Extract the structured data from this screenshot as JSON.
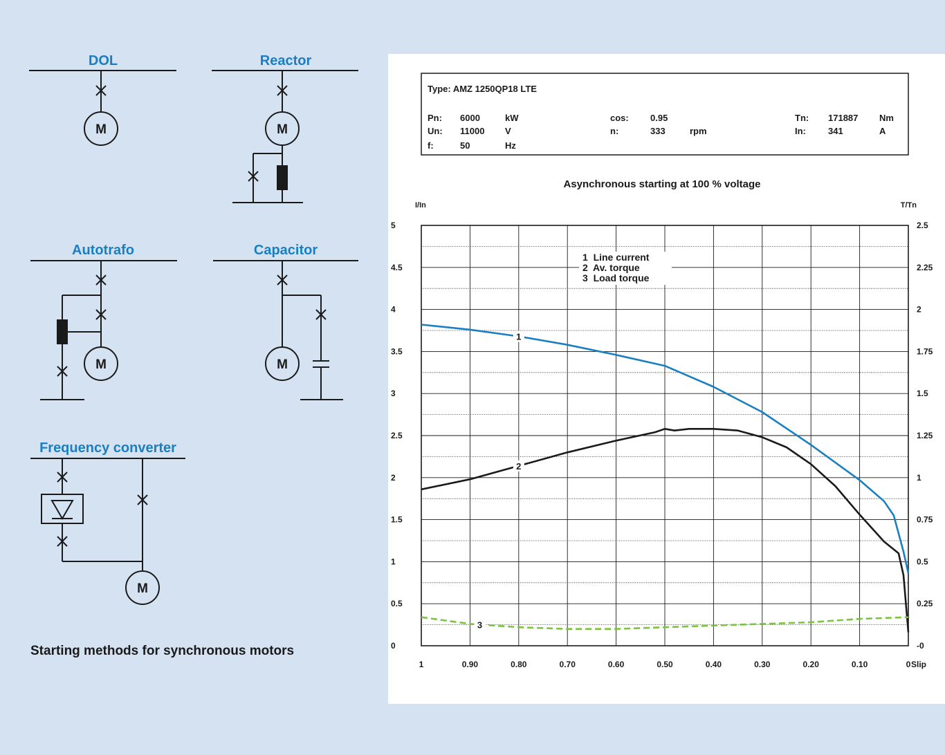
{
  "diagrams": {
    "dol": "DOL",
    "reactor": "Reactor",
    "autotrafo": "Autotrafo",
    "capacitor": "Capacitor",
    "freq": "Frequency converter",
    "motor": "M",
    "caption": "Starting methods for synchronous motors"
  },
  "motor_info": {
    "type": "Type: AMZ 1250QP18 LTE",
    "pn_label": "Pn:",
    "pn_value": "6000",
    "pn_unit": "kW",
    "un_label": "Un:",
    "un_value": "11000",
    "un_unit": "V",
    "f_label": "f:",
    "f_value": "50",
    "f_unit": "Hz",
    "cos_label": "cos:",
    "cos_value": "0.95",
    "n_label": "n:",
    "n_value": "333",
    "n_unit": "rpm",
    "tn_label": "Tn:",
    "tn_value": "171887",
    "tn_unit": "Nm",
    "in_label": "In:",
    "in_value": "341",
    "in_unit": "A"
  },
  "colors": {
    "blue_title": "#1a7fc1",
    "line_current": "#1a7fc1",
    "av_torque": "#1a1a1a",
    "load_torque": "#7cc242"
  },
  "chart_data": {
    "type": "line",
    "title": "Asynchronous starting at 100 % voltage",
    "ylabel_left": "I/In",
    "ylabel_right": "T/Tn",
    "xlabel": "Slip",
    "x_ticks": [
      "1",
      "0.90",
      "0.80",
      "0.70",
      "0.60",
      "0.50",
      "0.40",
      "0.30",
      "0.20",
      "0.10",
      "0"
    ],
    "y_left_ticks": [
      "0",
      "0.5",
      "1",
      "1.5",
      "2",
      "2.5",
      "3",
      "3.5",
      "4",
      "4.5",
      "5"
    ],
    "y_right_ticks": [
      "-0",
      "0.25",
      "0.5",
      "0.75",
      "1",
      "1.25",
      "1.5",
      "1.75",
      "2",
      "2.25",
      "2.5"
    ],
    "xlim": [
      1,
      0
    ],
    "ylim_left": [
      0,
      5
    ],
    "ylim_right": [
      0,
      2.5
    ],
    "grid": true,
    "legend": [
      "1  Line current",
      "2  Av. torque",
      "3  Load torque"
    ],
    "series": [
      {
        "name": "Line current",
        "label": "1",
        "axis": "left",
        "label_x": 0.8,
        "x": [
          1.0,
          0.9,
          0.8,
          0.7,
          0.6,
          0.5,
          0.4,
          0.3,
          0.2,
          0.1,
          0.05,
          0.03,
          0.01,
          0.0
        ],
        "y": [
          3.82,
          3.76,
          3.68,
          3.58,
          3.46,
          3.33,
          3.08,
          2.78,
          2.39,
          1.97,
          1.72,
          1.55,
          1.12,
          0.86
        ]
      },
      {
        "name": "Av. torque",
        "label": "2",
        "axis": "right",
        "label_x": 0.8,
        "x": [
          1.0,
          0.9,
          0.8,
          0.7,
          0.6,
          0.52,
          0.5,
          0.48,
          0.45,
          0.4,
          0.35,
          0.3,
          0.25,
          0.2,
          0.15,
          0.1,
          0.05,
          0.02,
          0.01,
          0.0
        ],
        "y": [
          0.93,
          0.99,
          1.07,
          1.15,
          1.22,
          1.27,
          1.29,
          1.28,
          1.29,
          1.29,
          1.28,
          1.24,
          1.18,
          1.08,
          0.95,
          0.78,
          0.62,
          0.55,
          0.42,
          0.08
        ]
      },
      {
        "name": "Load torque",
        "label": "3",
        "axis": "right",
        "label_x": 0.88,
        "x": [
          1.0,
          0.9,
          0.8,
          0.7,
          0.6,
          0.5,
          0.4,
          0.3,
          0.2,
          0.1,
          0.0
        ],
        "y": [
          0.17,
          0.13,
          0.11,
          0.1,
          0.1,
          0.11,
          0.12,
          0.13,
          0.14,
          0.16,
          0.17
        ]
      }
    ]
  }
}
